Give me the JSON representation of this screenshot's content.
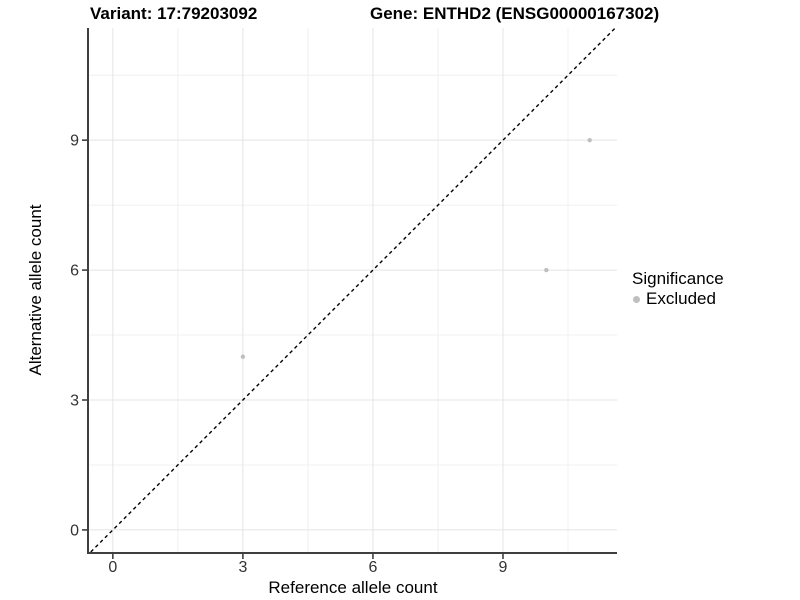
{
  "chart_data": {
    "type": "scatter",
    "title_left": "Variant: 17:79203092",
    "title_right": "Gene: ENTHD2 (ENSG00000167302)",
    "xlabel": "Reference allele count",
    "ylabel": "Alternative allele count",
    "xlim": [
      -0.55,
      11.63
    ],
    "ylim": [
      -0.51,
      11.59
    ],
    "x_ticks": [
      0,
      3,
      6,
      9
    ],
    "y_ticks": [
      0,
      3,
      6,
      9
    ],
    "x_minor_ticks": [
      1.5,
      4.5,
      7.5,
      10.5
    ],
    "y_minor_ticks": [
      1.5,
      4.5,
      7.5,
      10.5
    ],
    "grid": "major and minor gridlines on, white panel background",
    "identity_line": {
      "equation": "y = x",
      "style": "dashed",
      "color": "#000000"
    },
    "series": [
      {
        "name": "Excluded",
        "color": "#bfbfbf",
        "points": [
          [
            3,
            4
          ],
          [
            10,
            6
          ],
          [
            11,
            9
          ]
        ]
      }
    ],
    "legend": {
      "title": "Significance",
      "position": "right",
      "items": [
        {
          "label": "Excluded",
          "color": "#bfbfbf"
        }
      ]
    }
  },
  "colors": {
    "background": "#ffffff",
    "grid_major": "#e4e4e4",
    "grid_minor": "#f0f0f0",
    "axis_line": "#3f3f3f",
    "tick_label": "#333333",
    "title_text": "#000000",
    "point": "#bfbfbf",
    "diagonal": "#000000"
  }
}
